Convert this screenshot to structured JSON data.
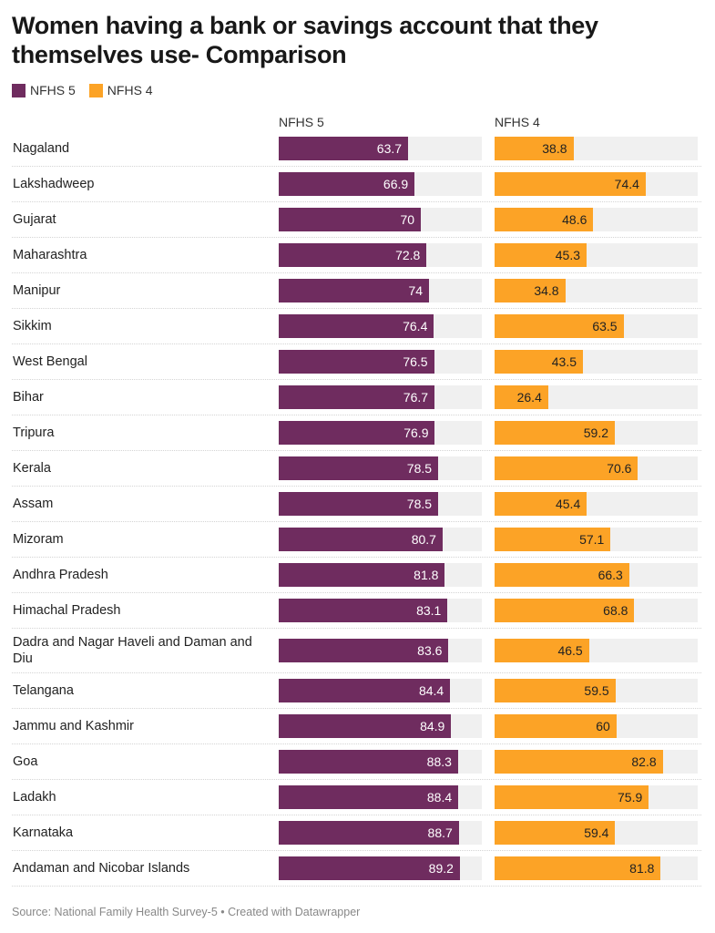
{
  "title": "Women having a bank or savings account that they themselves use- Comparison",
  "legend": [
    {
      "name": "NFHS 5",
      "color": "#6f2c5f"
    },
    {
      "name": "NFHS 4",
      "color": "#fca326"
    }
  ],
  "columns": [
    "NFHS 5",
    "NFHS 4"
  ],
  "source": "Source: National Family Health Survey-5 • Created with Datawrapper",
  "colors": {
    "nfhs5": "#6f2c5f",
    "nfhs4": "#fca326",
    "track": "#f0f0f0"
  },
  "chart_data": {
    "type": "bar",
    "xlim": [
      0,
      100
    ],
    "categories": [
      "Nagaland",
      "Lakshadweep",
      "Gujarat",
      "Maharashtra",
      "Manipur",
      "Sikkim",
      "West Bengal",
      "Bihar",
      "Tripura",
      "Kerala",
      "Assam",
      "Mizoram",
      "Andhra Pradesh",
      "Himachal Pradesh",
      "Dadra and Nagar Haveli and Daman and Diu",
      "Telangana",
      "Jammu and Kashmir",
      "Goa",
      "Ladakh",
      "Karnataka",
      "Andaman and Nicobar Islands"
    ],
    "series": [
      {
        "name": "NFHS 5",
        "values": [
          63.7,
          66.9,
          70,
          72.8,
          74,
          76.4,
          76.5,
          76.7,
          76.9,
          78.5,
          78.5,
          80.7,
          81.8,
          83.1,
          83.6,
          84.4,
          84.9,
          88.3,
          88.4,
          88.7,
          89.2
        ]
      },
      {
        "name": "NFHS 4",
        "values": [
          38.8,
          74.4,
          48.6,
          45.3,
          34.8,
          63.5,
          43.5,
          26.4,
          59.2,
          70.6,
          45.4,
          57.1,
          66.3,
          68.8,
          46.5,
          59.5,
          60,
          82.8,
          75.9,
          59.4,
          81.8
        ]
      }
    ]
  }
}
